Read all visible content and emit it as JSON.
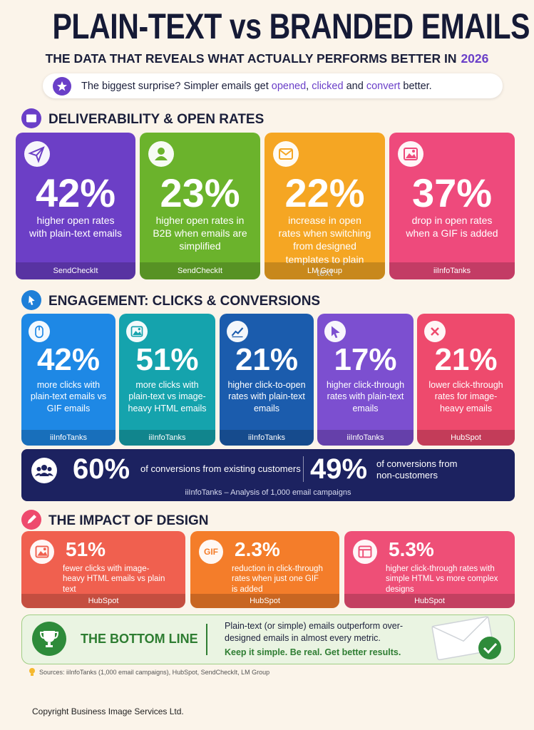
{
  "header": {
    "title": "PLAIN-TEXT vs BRANDED EMAILS",
    "subtitle": "THE DATA THAT REVEALS WHAT ACTUALLY PERFORMS BETTER IN",
    "subtitle_year": "2026"
  },
  "banner": {
    "lead": "The biggest surprise? Simpler emails get",
    "word1": "opened",
    "comma": ",",
    "word2": "clicked",
    "and": "and",
    "word3": "convert",
    "tail": "better."
  },
  "sections": [
    {
      "title": "DELIVERABILITY & OPEN RATES",
      "cards": [
        {
          "value": "42%",
          "description": "higher open rates with plain-text emails",
          "source": "SendCheckIt"
        },
        {
          "value": "23%",
          "description": "higher open rates in B2B when emails are simplified",
          "source": "SendCheckIt"
        },
        {
          "value": "22%",
          "description": "increase in open rates when switching from designed templates to plain text",
          "source": "LM Group"
        },
        {
          "value": "37%",
          "description": "drop in open rates when a GIF is added",
          "source": "iiInfoTanks"
        }
      ]
    },
    {
      "title": "ENGAGEMENT: CLICKS & CONVERSIONS",
      "cards": [
        {
          "value": "42%",
          "description": "more clicks with plain-text emails vs GIF emails",
          "source": "iiInfoTanks"
        },
        {
          "value": "51%",
          "description": "more clicks with plain-text vs image-heavy HTML emails",
          "source": "iiInfoTanks"
        },
        {
          "value": "21%",
          "description": "higher click-to-open rates with plain-text emails",
          "source": "iiInfoTanks"
        },
        {
          "value": "17%",
          "description": "higher click-through rates with plain-text emails",
          "source": "iiInfoTanks"
        },
        {
          "value": "21%",
          "description": "lower click-through rates for image-heavy emails",
          "source": "HubSpot"
        }
      ]
    },
    {
      "title": "THE IMPACT OF DESIGN",
      "cards": [
        {
          "value": "51%",
          "description": "fewer clicks with image-heavy HTML emails vs plain text",
          "source": "HubSpot"
        },
        {
          "value": "2.3%",
          "description": "reduction in click-through rates when just one GIF is added",
          "source": "HubSpot",
          "icon_label": "GIF"
        },
        {
          "value": "5.3%",
          "description": "higher click-through rates with simple HTML vs more complex designs",
          "source": "HubSpot"
        }
      ]
    }
  ],
  "conversions": {
    "items": [
      {
        "value": "60%",
        "text": "of conversions from existing customers"
      },
      {
        "value": "49%",
        "text": "of conversions from non-customers"
      }
    ],
    "source": "iiInfoTanks – Analysis of 1,000 email campaigns"
  },
  "bottom_line": {
    "title": "THE BOTTOM LINE",
    "text": "Plain-text (or simple) emails outperform over-designed emails in almost every metric.",
    "emphasis": "Keep it simple. Be real. Get better results."
  },
  "sources": "Sources: iiInfoTanks (1,000 email campaigns), HubSpot, SendCheckIt, LM Group",
  "copyright": "Copyright Business Image Services Ltd."
}
